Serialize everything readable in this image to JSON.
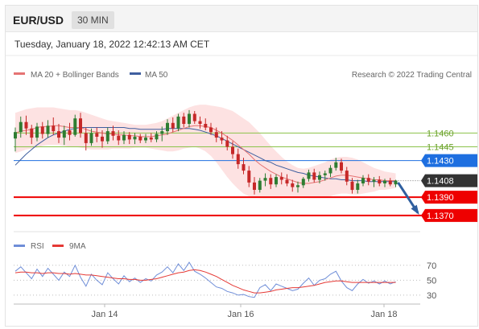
{
  "header": {
    "pair": "EUR/USD",
    "timeframe": "30 MIN"
  },
  "timestamp": "Tuesday, January 18, 2022 12:42:13 AM CET",
  "legend": {
    "ma20": "MA 20 + Bollinger Bands",
    "ma50": "MA 50",
    "rsi": "RSI",
    "ma9": "9MA"
  },
  "credit": "Research © 2022 Trading Central",
  "colors": {
    "up": "#2e7d32",
    "down": "#c62828",
    "ma20": "#e57373",
    "ma50": "#3f5f9f",
    "band": "#fde2e2",
    "resistance": "#8bc34a",
    "pivot": "#1e6fe0",
    "support": "#ee0000",
    "last": "#333333",
    "rsi": "#6f8ed8",
    "ma9": "#e53935"
  },
  "chart_data": [
    {
      "type": "candlestick",
      "ylim": [
        1.1355,
        1.1513
      ],
      "x_ticks": [
        "Jan 14",
        "Jan 16",
        "Jan 18"
      ],
      "candles": [
        [
          1.1454,
          1.1466,
          1.144,
          1.1461
        ],
        [
          1.1461,
          1.1478,
          1.1455,
          1.1472
        ],
        [
          1.1472,
          1.1479,
          1.1458,
          1.1465
        ],
        [
          1.1465,
          1.1469,
          1.1448,
          1.1455
        ],
        [
          1.1455,
          1.1471,
          1.1451,
          1.1467
        ],
        [
          1.1467,
          1.1472,
          1.1454,
          1.1459
        ],
        [
          1.1459,
          1.1474,
          1.1455,
          1.1468
        ],
        [
          1.1468,
          1.1477,
          1.1458,
          1.1462
        ],
        [
          1.1462,
          1.147,
          1.1449,
          1.1455
        ],
        [
          1.1455,
          1.1468,
          1.1447,
          1.1463
        ],
        [
          1.1463,
          1.1471,
          1.1452,
          1.1458
        ],
        [
          1.1458,
          1.148,
          1.1456,
          1.1476
        ],
        [
          1.1476,
          1.1482,
          1.1455,
          1.146
        ],
        [
          1.146,
          1.1466,
          1.1441,
          1.1449
        ],
        [
          1.1449,
          1.1465,
          1.1446,
          1.146
        ],
        [
          1.146,
          1.1466,
          1.145,
          1.1456
        ],
        [
          1.1456,
          1.1463,
          1.1444,
          1.1451
        ],
        [
          1.1451,
          1.1466,
          1.1448,
          1.1462
        ],
        [
          1.1462,
          1.1468,
          1.1452,
          1.1457
        ],
        [
          1.1457,
          1.1463,
          1.1447,
          1.1452
        ],
        [
          1.1452,
          1.1462,
          1.1448,
          1.1458
        ],
        [
          1.1458,
          1.1461,
          1.1448,
          1.1453
        ],
        [
          1.1453,
          1.146,
          1.1448,
          1.1456
        ],
        [
          1.1456,
          1.1459,
          1.1449,
          1.1452
        ],
        [
          1.1452,
          1.1459,
          1.1449,
          1.1455
        ],
        [
          1.1455,
          1.146,
          1.145,
          1.1453
        ],
        [
          1.1453,
          1.1462,
          1.145,
          1.1459
        ],
        [
          1.1459,
          1.1467,
          1.1451,
          1.1462
        ],
        [
          1.1462,
          1.1475,
          1.1458,
          1.1471
        ],
        [
          1.1471,
          1.1477,
          1.1461,
          1.1465
        ],
        [
          1.1465,
          1.1481,
          1.1462,
          1.1478
        ],
        [
          1.1478,
          1.1482,
          1.1466,
          1.147
        ],
        [
          1.147,
          1.1485,
          1.1466,
          1.1481
        ],
        [
          1.1481,
          1.1484,
          1.147,
          1.1473
        ],
        [
          1.1473,
          1.1478,
          1.1465,
          1.147
        ],
        [
          1.147,
          1.1476,
          1.1463,
          1.1466
        ],
        [
          1.1466,
          1.1471,
          1.1458,
          1.1461
        ],
        [
          1.1461,
          1.1466,
          1.145,
          1.1455
        ],
        [
          1.1455,
          1.1462,
          1.1448,
          1.1452
        ],
        [
          1.1452,
          1.1457,
          1.1441,
          1.1445
        ],
        [
          1.1445,
          1.1451,
          1.1432,
          1.1437
        ],
        [
          1.1437,
          1.1443,
          1.1421,
          1.1426
        ],
        [
          1.1426,
          1.1433,
          1.1415,
          1.1419
        ],
        [
          1.1419,
          1.1424,
          1.1401,
          1.1406
        ],
        [
          1.1406,
          1.1412,
          1.1393,
          1.1398
        ],
        [
          1.1398,
          1.1411,
          1.1395,
          1.1408
        ],
        [
          1.1408,
          1.1416,
          1.1402,
          1.1411
        ],
        [
          1.1411,
          1.1415,
          1.1399,
          1.1404
        ],
        [
          1.1404,
          1.1415,
          1.1401,
          1.1412
        ],
        [
          1.1412,
          1.1417,
          1.1404,
          1.1409
        ],
        [
          1.1409,
          1.1415,
          1.1402,
          1.1405
        ],
        [
          1.1405,
          1.1409,
          1.1396,
          1.1401
        ],
        [
          1.1401,
          1.1407,
          1.1395,
          1.1403
        ],
        [
          1.1403,
          1.1412,
          1.14,
          1.141
        ],
        [
          1.141,
          1.142,
          1.1407,
          1.1417
        ],
        [
          1.1417,
          1.1421,
          1.1406,
          1.1409
        ],
        [
          1.1409,
          1.1418,
          1.1405,
          1.1414
        ],
        [
          1.1414,
          1.1419,
          1.1408,
          1.1416
        ],
        [
          1.1416,
          1.1425,
          1.1412,
          1.1422
        ],
        [
          1.1422,
          1.1433,
          1.1419,
          1.1428
        ],
        [
          1.1428,
          1.1432,
          1.1416,
          1.1419
        ],
        [
          1.1419,
          1.1423,
          1.1403,
          1.1407
        ],
        [
          1.1407,
          1.1411,
          1.1394,
          1.1398
        ],
        [
          1.1398,
          1.1409,
          1.1394,
          1.1405
        ],
        [
          1.1405,
          1.1414,
          1.1402,
          1.1411
        ],
        [
          1.1411,
          1.1415,
          1.1403,
          1.1407
        ],
        [
          1.1407,
          1.1412,
          1.1401,
          1.1409
        ],
        [
          1.1409,
          1.1413,
          1.1402,
          1.1405
        ],
        [
          1.1405,
          1.141,
          1.1401,
          1.1408
        ],
        [
          1.1408,
          1.1411,
          1.1402,
          1.1404
        ],
        [
          1.1404,
          1.1409,
          1.1401,
          1.1408
        ]
      ],
      "ma20": [
        1.146,
        1.1462,
        1.1463,
        1.1464,
        1.1466,
        1.1467,
        1.1467,
        1.1468,
        1.1468,
        1.1467,
        1.1466,
        1.1466,
        1.1466,
        1.1464,
        1.1462,
        1.1461,
        1.146,
        1.1459,
        1.1459,
        1.1458,
        1.1458,
        1.1457,
        1.1457,
        1.1456,
        1.1456,
        1.1456,
        1.1457,
        1.1458,
        1.1459,
        1.1461,
        1.1463,
        1.1465,
        1.1467,
        1.1468,
        1.1468,
        1.1467,
        1.1466,
        1.1463,
        1.146,
        1.1456,
        1.1452,
        1.1447,
        1.1442,
        1.1437,
        1.1431,
        1.1426,
        1.1422,
        1.1418,
        1.1415,
        1.1412,
        1.141,
        1.1408,
        1.1406,
        1.1405,
        1.1405,
        1.1406,
        1.1407,
        1.1409,
        1.1411,
        1.1413,
        1.1414,
        1.1414,
        1.1413,
        1.1412,
        1.1411,
        1.141,
        1.1409,
        1.1409,
        1.1408,
        1.1408,
        1.1408
      ],
      "band_upper": [
        1.1482,
        1.1484,
        1.1486,
        1.1487,
        1.1488,
        1.1488,
        1.1488,
        1.1488,
        1.1487,
        1.1486,
        1.1485,
        1.1485,
        1.1484,
        1.1482,
        1.148,
        1.1478,
        1.1476,
        1.1474,
        1.1473,
        1.1472,
        1.1471,
        1.147,
        1.1469,
        1.1469,
        1.1469,
        1.147,
        1.1471,
        1.1473,
        1.1476,
        1.1479,
        1.1482,
        1.1485,
        1.1488,
        1.149,
        1.1491,
        1.1491,
        1.149,
        1.1489,
        1.1488,
        1.1486,
        1.1484,
        1.148,
        1.1476,
        1.1472,
        1.1466,
        1.146,
        1.1453,
        1.1446,
        1.144,
        1.1434,
        1.1429,
        1.1425,
        1.1422,
        1.1421,
        1.1422,
        1.1424,
        1.1426,
        1.1428,
        1.1431,
        1.1433,
        1.1434,
        1.1434,
        1.1433,
        1.1431,
        1.1428,
        1.1425,
        1.1422,
        1.142,
        1.1418,
        1.1417,
        1.1416
      ],
      "band_lower": [
        1.1438,
        1.144,
        1.1442,
        1.1443,
        1.1444,
        1.1446,
        1.1447,
        1.1447,
        1.1447,
        1.1446,
        1.1445,
        1.1445,
        1.1444,
        1.1443,
        1.1442,
        1.1442,
        1.1442,
        1.1442,
        1.1443,
        1.1443,
        1.1443,
        1.1443,
        1.1444,
        1.1444,
        1.1444,
        1.1443,
        1.1442,
        1.1441,
        1.144,
        1.144,
        1.1441,
        1.1443,
        1.1444,
        1.1445,
        1.1443,
        1.144,
        1.1435,
        1.1428,
        1.142,
        1.1412,
        1.1405,
        1.1399,
        1.1394,
        1.1391,
        1.139,
        1.1389,
        1.1389,
        1.1389,
        1.1389,
        1.1389,
        1.139,
        1.139,
        1.139,
        1.139,
        1.1389,
        1.1389,
        1.1389,
        1.139,
        1.1391,
        1.1393,
        1.1394,
        1.1394,
        1.1393,
        1.1393,
        1.1394,
        1.1395,
        1.1396,
        1.1398,
        1.1398,
        1.1399,
        1.14
      ],
      "ma50": [
        1.1425,
        1.1431,
        1.1437,
        1.1442,
        1.1447,
        1.1451,
        1.1455,
        1.1458,
        1.146,
        1.1462,
        1.1464,
        1.1465,
        1.1466,
        1.1466,
        1.1466,
        1.1466,
        1.1466,
        1.1466,
        1.1466,
        1.1466,
        1.1466,
        1.1465,
        1.1465,
        1.1464,
        1.1464,
        1.1464,
        1.1464,
        1.1464,
        1.1465,
        1.1465,
        1.1465,
        1.1465,
        1.1465,
        1.1464,
        1.1463,
        1.1461,
        1.1459,
        1.1457,
        1.1454,
        1.1451,
        1.1448,
        1.1445,
        1.1442,
        1.1439,
        1.1436,
        1.1433,
        1.143,
        1.1428,
        1.1425,
        1.1423,
        1.1421,
        1.1419,
        1.1417,
        1.1416,
        1.1414,
        1.1413,
        1.1412,
        1.1411,
        1.141,
        1.141,
        1.1409,
        1.1409,
        1.1408,
        1.1408,
        1.1408,
        1.1407,
        1.1407,
        1.1407,
        1.1407,
        1.1407,
        1.1407
      ],
      "levels": [
        {
          "value": 1.146,
          "label": "1.1460",
          "kind": "resistance"
        },
        {
          "value": 1.1445,
          "label": "1.1445",
          "kind": "resistance"
        },
        {
          "value": 1.143,
          "label": "1.1430",
          "kind": "pivot"
        },
        {
          "value": 1.1408,
          "label": "1.1408",
          "kind": "last"
        },
        {
          "value": 1.139,
          "label": "1.1390",
          "kind": "support"
        },
        {
          "value": 1.137,
          "label": "1.1370",
          "kind": "support"
        }
      ],
      "forecast": {
        "from": 1.1406,
        "to": 1.1373
      }
    },
    {
      "type": "line",
      "ylim": [
        18,
        86
      ],
      "y_ticks": [
        70,
        50,
        30
      ],
      "series": [
        {
          "name": "RSI",
          "values": [
            62,
            68,
            60,
            52,
            65,
            55,
            66,
            58,
            50,
            61,
            55,
            70,
            54,
            42,
            58,
            50,
            44,
            60,
            52,
            45,
            56,
            48,
            53,
            47,
            52,
            49,
            57,
            61,
            68,
            60,
            72,
            63,
            74,
            62,
            58,
            53,
            47,
            41,
            39,
            35,
            33,
            30,
            31,
            28,
            27,
            40,
            44,
            36,
            45,
            42,
            39,
            36,
            38,
            46,
            53,
            43,
            50,
            52,
            58,
            62,
            49,
            40,
            36,
            45,
            51,
            46,
            49,
            45,
            49,
            45,
            48
          ]
        },
        {
          "name": "9MA",
          "values": [
            60,
            61,
            61,
            60,
            60,
            59,
            60,
            60,
            59,
            59,
            58,
            59,
            58,
            57,
            57,
            56,
            55,
            54,
            53,
            52,
            52,
            51,
            51,
            50,
            50,
            51,
            52,
            54,
            56,
            58,
            60,
            61,
            63,
            64,
            63,
            61,
            58,
            55,
            51,
            47,
            43,
            40,
            37,
            35,
            33,
            33,
            34,
            35,
            37,
            38,
            39,
            40,
            40,
            41,
            42,
            43,
            45,
            47,
            48,
            49,
            49,
            48,
            47,
            47,
            47,
            47,
            47,
            47,
            47,
            47,
            47
          ]
        }
      ]
    }
  ]
}
